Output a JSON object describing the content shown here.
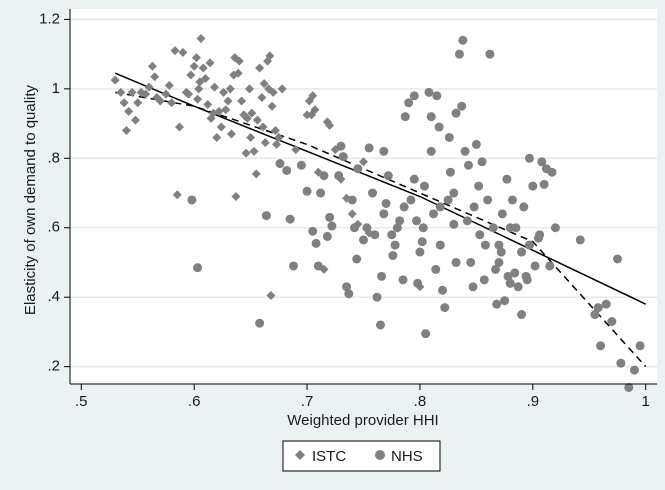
{
  "chart_data": {
    "type": "scatter",
    "xlabel": "Weighted provider HHI",
    "ylabel": "Elasticity of own demand to quality",
    "xlim": [
      0.49,
      1.01
    ],
    "ylim": [
      0.15,
      1.23
    ],
    "xticks": [
      0.5,
      0.6,
      0.7,
      0.8,
      0.9,
      1
    ],
    "xtick_labels": [
      ".5",
      ".6",
      ".7",
      ".8",
      ".9",
      "1"
    ],
    "yticks": [
      0.2,
      0.4,
      0.6,
      0.8,
      1.0,
      1.2
    ],
    "ytick_labels": [
      ".2",
      ".4",
      ".6",
      ".8",
      "1",
      "1.2"
    ],
    "grid": true,
    "legend_position": "bottom-center",
    "colors": {
      "background": "#eaf2f3",
      "plot_area": "#ffffff",
      "grid": "#e2ebec",
      "markers": "#808080",
      "lines": "#000000"
    },
    "series": [
      {
        "name": "ISTC",
        "marker": "diamond",
        "points": [
          [
            0.53,
            1.025
          ],
          [
            0.535,
            0.99
          ],
          [
            0.538,
            0.96
          ],
          [
            0.54,
            0.88
          ],
          [
            0.542,
            0.935
          ],
          [
            0.545,
            0.99
          ],
          [
            0.548,
            0.91
          ],
          [
            0.55,
            0.96
          ],
          [
            0.553,
            0.99
          ],
          [
            0.557,
            0.985
          ],
          [
            0.56,
            1.005
          ],
          [
            0.563,
            1.065
          ],
          [
            0.565,
            1.035
          ],
          [
            0.567,
            0.975
          ],
          [
            0.57,
            0.965
          ],
          [
            0.575,
            0.985
          ],
          [
            0.578,
            1.01
          ],
          [
            0.58,
            0.96
          ],
          [
            0.583,
            1.11
          ],
          [
            0.585,
            0.695
          ],
          [
            0.587,
            0.89
          ],
          [
            0.59,
            1.105
          ],
          [
            0.593,
            0.99
          ],
          [
            0.595,
            0.985
          ],
          [
            0.597,
            1.04
          ],
          [
            0.6,
            1.065
          ],
          [
            0.602,
            1.09
          ],
          [
            0.603,
            0.97
          ],
          [
            0.604,
            1.0
          ],
          [
            0.605,
            1.02
          ],
          [
            0.606,
            1.145
          ],
          [
            0.608,
            1.06
          ],
          [
            0.61,
            1.03
          ],
          [
            0.612,
            0.955
          ],
          [
            0.614,
            1.075
          ],
          [
            0.615,
            0.915
          ],
          [
            0.617,
            0.93
          ],
          [
            0.618,
            1.005
          ],
          [
            0.62,
            0.86
          ],
          [
            0.622,
            0.935
          ],
          [
            0.624,
            0.89
          ],
          [
            0.626,
            0.99
          ],
          [
            0.628,
            0.94
          ],
          [
            0.63,
            0.965
          ],
          [
            0.632,
            1.0
          ],
          [
            0.633,
            0.87
          ],
          [
            0.635,
            1.04
          ],
          [
            0.636,
            1.09
          ],
          [
            0.637,
            0.69
          ],
          [
            0.639,
            1.045
          ],
          [
            0.64,
            1.08
          ],
          [
            0.642,
            0.965
          ],
          [
            0.644,
            0.925
          ],
          [
            0.646,
            0.815
          ],
          [
            0.647,
            0.915
          ],
          [
            0.649,
            1.0
          ],
          [
            0.65,
            0.86
          ],
          [
            0.651,
            0.93
          ],
          [
            0.653,
            0.82
          ],
          [
            0.655,
            0.755
          ],
          [
            0.656,
            0.91
          ],
          [
            0.658,
            1.06
          ],
          [
            0.66,
            0.975
          ],
          [
            0.661,
            0.89
          ],
          [
            0.662,
            1.015
          ],
          [
            0.663,
            0.845
          ],
          [
            0.665,
            1.08
          ],
          [
            0.666,
            1.0
          ],
          [
            0.667,
            1.095
          ],
          [
            0.668,
            0.405
          ],
          [
            0.669,
            0.95
          ],
          [
            0.67,
            0.99
          ],
          [
            0.672,
            0.88
          ],
          [
            0.673,
            0.84
          ],
          [
            0.675,
            0.86
          ],
          [
            0.678,
            1.0
          ],
          [
            0.69,
            0.825
          ],
          [
            0.7,
            0.925
          ],
          [
            0.702,
            0.965
          ],
          [
            0.704,
            0.925
          ],
          [
            0.705,
            0.98
          ],
          [
            0.707,
            0.94
          ],
          [
            0.71,
            0.76
          ],
          [
            0.715,
            0.48
          ],
          [
            0.718,
            0.905
          ],
          [
            0.72,
            0.895
          ],
          [
            0.725,
            0.825
          ],
          [
            0.73,
            0.74
          ],
          [
            0.735,
            0.685
          ],
          [
            0.74,
            0.64
          ],
          [
            0.745,
            0.61
          ],
          [
            0.75,
            0.79
          ],
          [
            0.755,
            0.585
          ],
          [
            0.8,
            0.43
          ]
        ]
      },
      {
        "name": "NHS",
        "marker": "circle",
        "points": [
          [
            0.598,
            0.68
          ],
          [
            0.603,
            0.485
          ],
          [
            0.658,
            0.325
          ],
          [
            0.664,
            0.635
          ],
          [
            0.676,
            0.785
          ],
          [
            0.682,
            0.765
          ],
          [
            0.685,
            0.625
          ],
          [
            0.688,
            0.49
          ],
          [
            0.695,
            0.78
          ],
          [
            0.7,
            0.705
          ],
          [
            0.705,
            0.59
          ],
          [
            0.708,
            0.555
          ],
          [
            0.71,
            0.49
          ],
          [
            0.712,
            0.7
          ],
          [
            0.715,
            0.75
          ],
          [
            0.718,
            0.575
          ],
          [
            0.72,
            0.63
          ],
          [
            0.722,
            0.605
          ],
          [
            0.728,
            0.75
          ],
          [
            0.73,
            0.835
          ],
          [
            0.732,
            0.805
          ],
          [
            0.735,
            0.43
          ],
          [
            0.737,
            0.41
          ],
          [
            0.74,
            0.68
          ],
          [
            0.742,
            0.6
          ],
          [
            0.745,
            0.77
          ],
          [
            0.75,
            0.565
          ],
          [
            0.755,
            0.83
          ],
          [
            0.758,
            0.7
          ],
          [
            0.76,
            0.58
          ],
          [
            0.762,
            0.4
          ],
          [
            0.765,
            0.32
          ],
          [
            0.768,
            0.82
          ],
          [
            0.77,
            0.67
          ],
          [
            0.772,
            0.75
          ],
          [
            0.775,
            0.58
          ],
          [
            0.778,
            0.55
          ],
          [
            0.78,
            0.6
          ],
          [
            0.782,
            0.62
          ],
          [
            0.785,
            0.45
          ],
          [
            0.787,
            0.92
          ],
          [
            0.79,
            0.96
          ],
          [
            0.792,
            0.68
          ],
          [
            0.795,
            0.74
          ],
          [
            0.797,
            0.62
          ],
          [
            0.8,
            0.53
          ],
          [
            0.802,
            0.56
          ],
          [
            0.804,
            0.72
          ],
          [
            0.805,
            0.295
          ],
          [
            0.808,
            0.99
          ],
          [
            0.81,
            0.82
          ],
          [
            0.812,
            0.64
          ],
          [
            0.815,
            0.98
          ],
          [
            0.817,
            0.89
          ],
          [
            0.818,
            0.55
          ],
          [
            0.82,
            0.42
          ],
          [
            0.822,
            0.37
          ],
          [
            0.825,
            0.68
          ],
          [
            0.827,
            0.76
          ],
          [
            0.83,
            0.61
          ],
          [
            0.832,
            0.93
          ],
          [
            0.835,
            1.1
          ],
          [
            0.837,
            0.95
          ],
          [
            0.838,
            1.14
          ],
          [
            0.84,
            0.82
          ],
          [
            0.842,
            0.62
          ],
          [
            0.845,
            0.5
          ],
          [
            0.847,
            0.43
          ],
          [
            0.85,
            0.84
          ],
          [
            0.852,
            0.72
          ],
          [
            0.855,
            0.79
          ],
          [
            0.857,
            0.45
          ],
          [
            0.86,
            0.68
          ],
          [
            0.862,
            1.1
          ],
          [
            0.865,
            0.6
          ],
          [
            0.867,
            0.48
          ],
          [
            0.868,
            0.38
          ],
          [
            0.87,
            0.55
          ],
          [
            0.872,
            0.53
          ],
          [
            0.873,
            0.64
          ],
          [
            0.875,
            0.39
          ],
          [
            0.877,
            0.74
          ],
          [
            0.88,
            0.44
          ],
          [
            0.882,
            0.68
          ],
          [
            0.884,
            0.47
          ],
          [
            0.885,
            0.6
          ],
          [
            0.887,
            0.43
          ],
          [
            0.89,
            0.35
          ],
          [
            0.892,
            0.66
          ],
          [
            0.894,
            0.46
          ],
          [
            0.895,
            0.45
          ],
          [
            0.897,
            0.8
          ],
          [
            0.9,
            0.72
          ],
          [
            0.902,
            0.49
          ],
          [
            0.905,
            0.57
          ],
          [
            0.906,
            0.58
          ],
          [
            0.908,
            0.79
          ],
          [
            0.91,
            0.725
          ],
          [
            0.912,
            0.77
          ],
          [
            0.915,
            0.49
          ],
          [
            0.917,
            0.76
          ],
          [
            0.92,
            0.6
          ],
          [
            0.795,
            0.98
          ],
          [
            0.81,
            0.92
          ],
          [
            0.826,
            0.86
          ],
          [
            0.843,
            0.78
          ],
          [
            0.848,
            0.66
          ],
          [
            0.853,
            0.58
          ],
          [
            0.832,
            0.5
          ],
          [
            0.814,
            0.48
          ],
          [
            0.798,
            0.44
          ],
          [
            0.776,
            0.52
          ],
          [
            0.766,
            0.46
          ],
          [
            0.753,
            0.6
          ],
          [
            0.744,
            0.51
          ],
          [
            0.768,
            0.64
          ],
          [
            0.786,
            0.66
          ],
          [
            0.803,
            0.6
          ],
          [
            0.818,
            0.66
          ],
          [
            0.83,
            0.7
          ],
          [
            0.858,
            0.55
          ],
          [
            0.87,
            0.5
          ],
          [
            0.878,
            0.46
          ],
          [
            0.89,
            0.53
          ],
          [
            0.88,
            0.6
          ],
          [
            0.897,
            0.55
          ],
          [
            0.942,
            0.565
          ],
          [
            0.955,
            0.35
          ],
          [
            0.958,
            0.37
          ],
          [
            0.96,
            0.26
          ],
          [
            0.965,
            0.38
          ],
          [
            0.97,
            0.33
          ],
          [
            0.975,
            0.51
          ],
          [
            0.978,
            0.21
          ],
          [
            0.985,
            0.14
          ],
          [
            0.99,
            0.19
          ],
          [
            0.995,
            0.26
          ]
        ]
      }
    ],
    "fit_lines": [
      {
        "style": "solid",
        "x": [
          0.53,
          0.6,
          0.7,
          0.8,
          0.9,
          1.0
        ],
        "y": [
          1.045,
          0.95,
          0.82,
          0.69,
          0.535,
          0.38
        ]
      },
      {
        "style": "dashed",
        "x": [
          0.53,
          0.6,
          0.7,
          0.8,
          0.9,
          1.0
        ],
        "y": [
          0.99,
          0.95,
          0.84,
          0.7,
          0.56,
          0.2
        ]
      }
    ]
  }
}
